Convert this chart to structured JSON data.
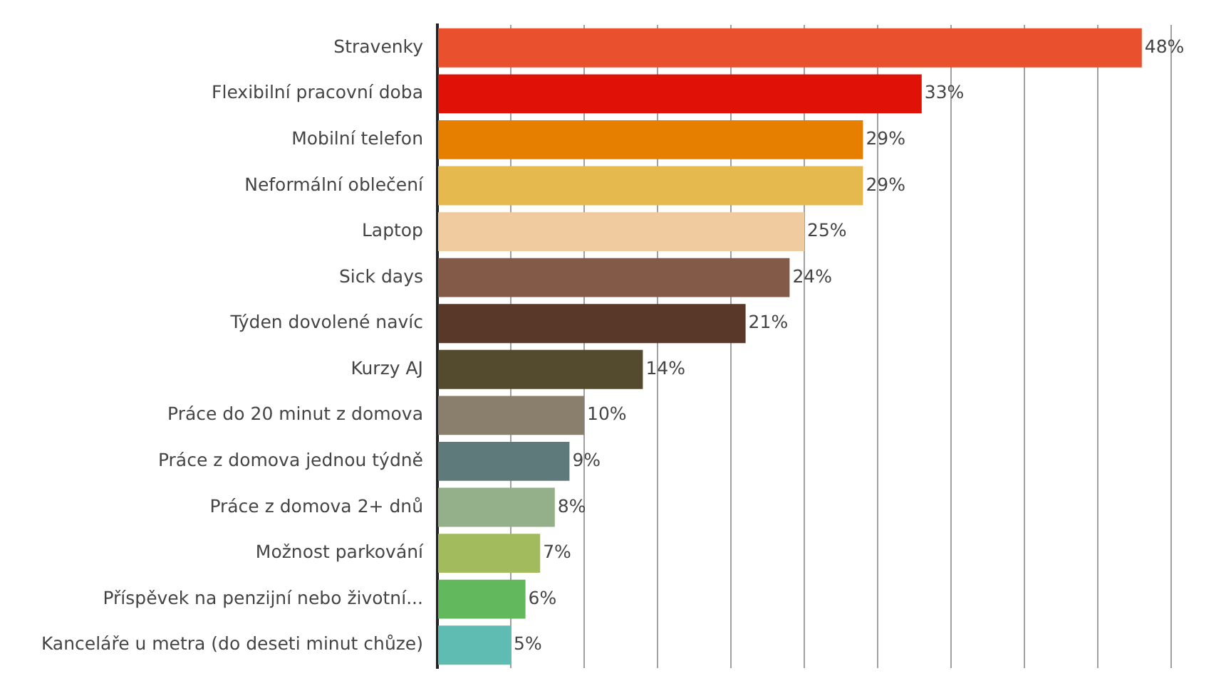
{
  "chart_data": {
    "type": "bar",
    "orientation": "horizontal",
    "categories": [
      "Stravenky",
      "Flexibilní pracovní doba",
      "Mobilní telefon",
      "Neformální oblečení",
      "Laptop",
      "Sick days",
      "Týden dovolené navíc",
      "Kurzy AJ",
      "Práce do 20 minut z domova",
      "Práce z domova jednou týdně",
      "Práce z domova 2+ dnů",
      "Možnost parkování",
      "Příspěvek na penzijní nebo životní...",
      "Kanceláře u metra (do deseti minut chůze)"
    ],
    "values": [
      48,
      33,
      29,
      29,
      25,
      24,
      21,
      14,
      10,
      9,
      8,
      7,
      6,
      5
    ],
    "value_labels": [
      "48%",
      "33%",
      "29%",
      "29%",
      "25%",
      "24%",
      "21%",
      "14%",
      "10%",
      "9%",
      "8%",
      "7%",
      "6%",
      "5%"
    ],
    "colors": [
      "#e8502e",
      "#e01208",
      "#e67e00",
      "#e5b94e",
      "#efcb9f",
      "#835a47",
      "#5a3829",
      "#544b2e",
      "#8a7e6d",
      "#5f7a7b",
      "#93b08a",
      "#a2bb5c",
      "#62b85d",
      "#5fbcb2"
    ],
    "xlim": [
      0,
      50
    ],
    "xticks": [
      {
        "value": 0,
        "label": null
      },
      {
        "value": 5,
        "label": null
      },
      {
        "value": 10,
        "label": null
      },
      {
        "value": 15,
        "label": null
      },
      {
        "value": 20,
        "label": null
      },
      {
        "value": 25,
        "label": null
      },
      {
        "value": 30,
        "label": null
      },
      {
        "value": 35,
        "label": null
      },
      {
        "value": 40,
        "label": null
      },
      {
        "value": 45,
        "label": null
      },
      {
        "value": 50,
        "label": null
      }
    ],
    "grid": "x",
    "tick_labels": "y",
    "legend": false
  }
}
